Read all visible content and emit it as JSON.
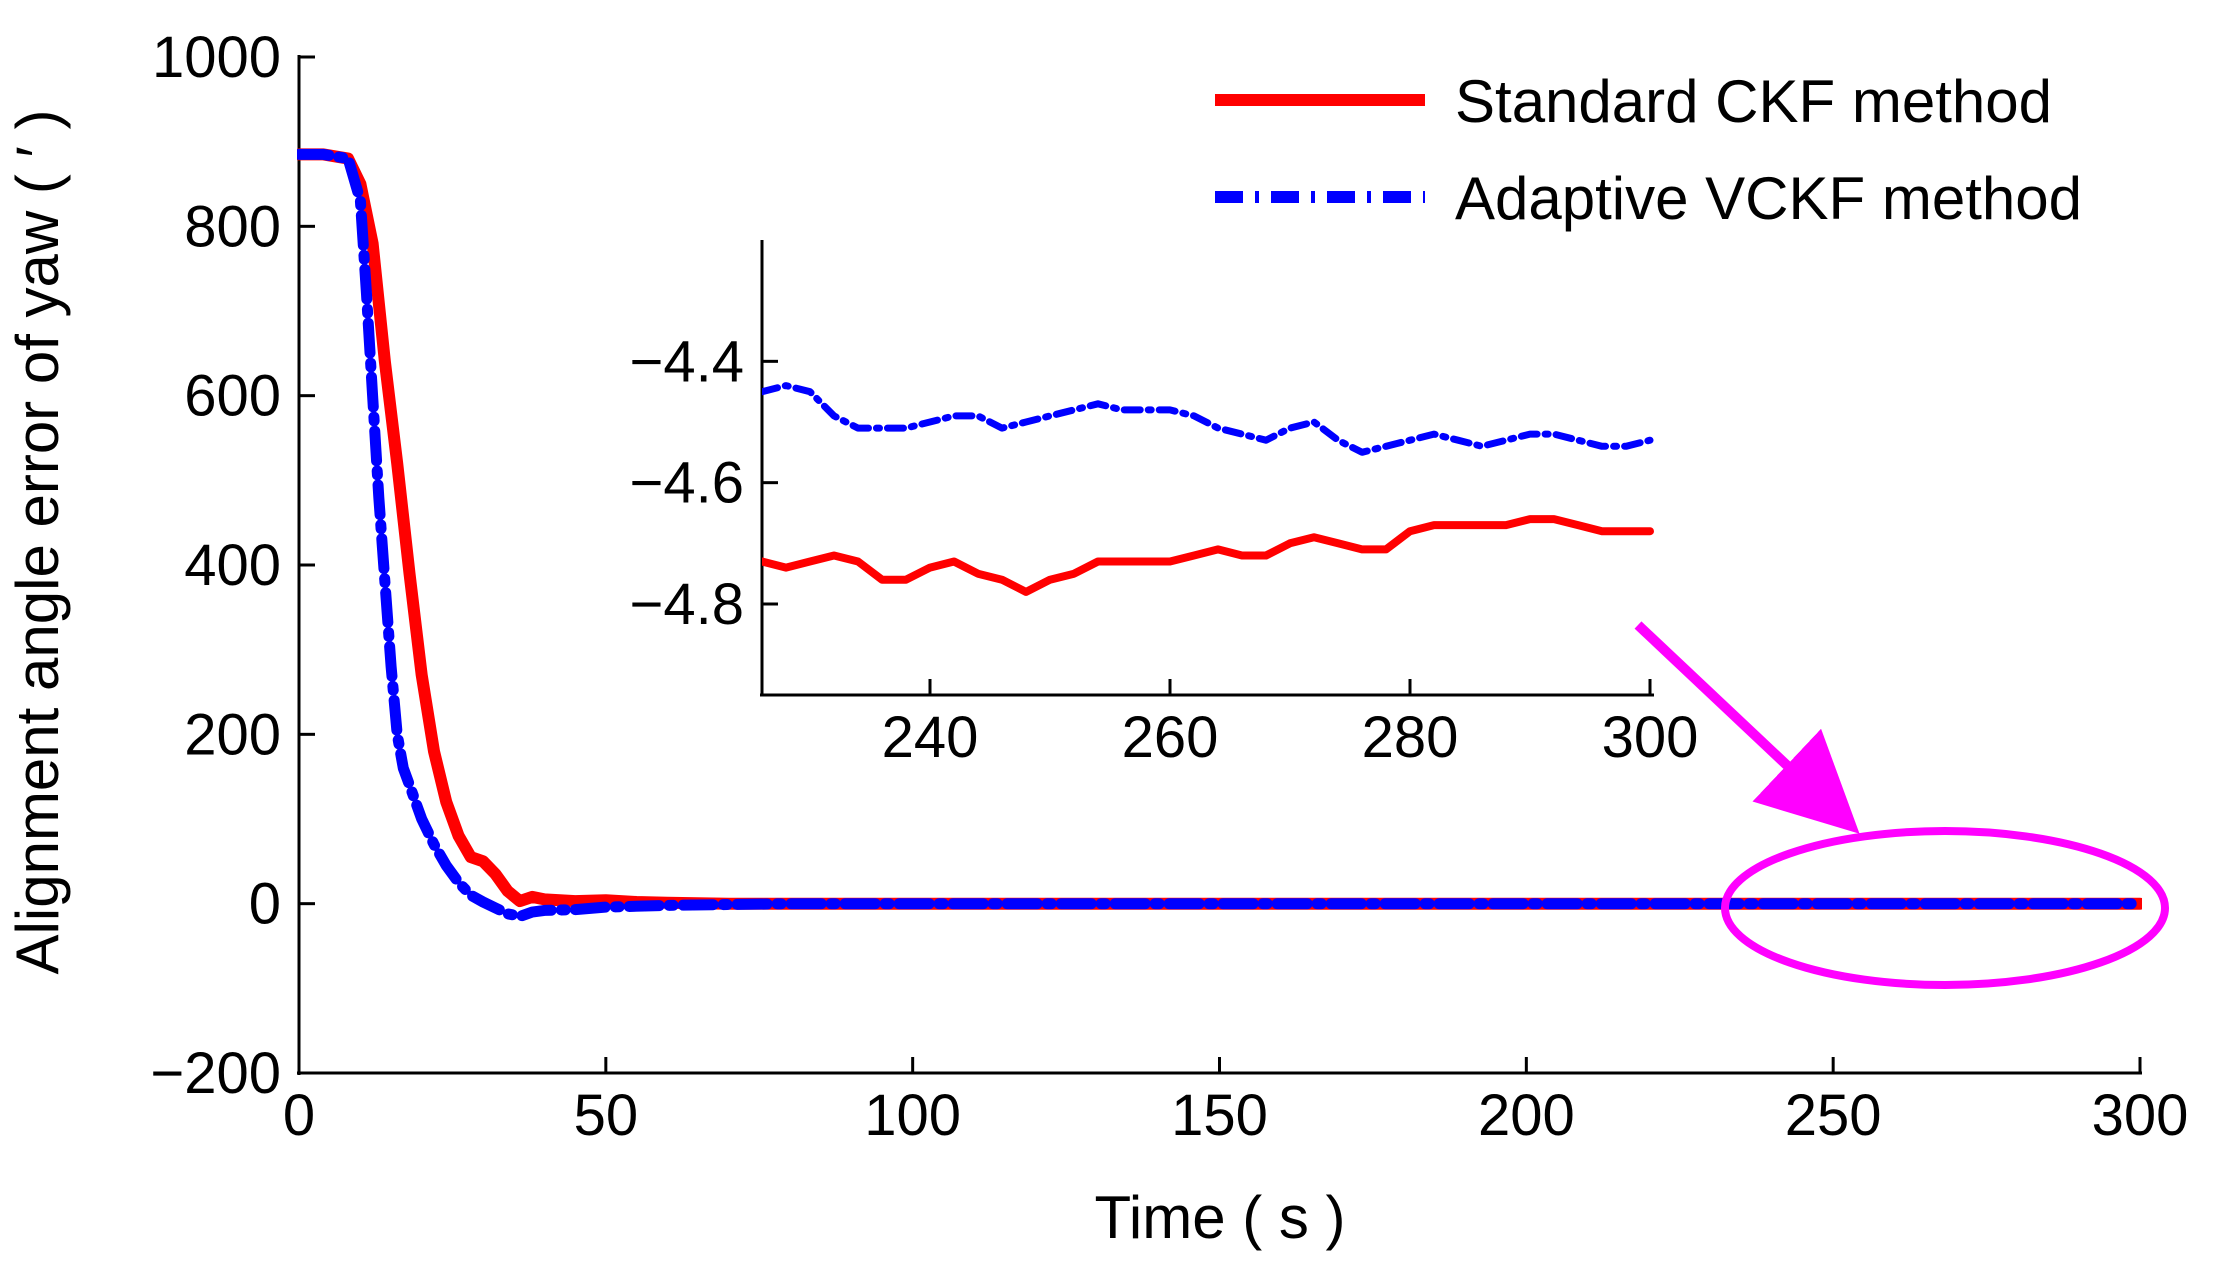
{
  "chart_data": {
    "type": "line",
    "main": {
      "xlabel": "Time ( s )",
      "ylabel": "Alignment angle error of yaw ( ′ )",
      "xlim": [
        0,
        300
      ],
      "ylim": [
        -200,
        1000
      ],
      "xticks": [
        0,
        50,
        100,
        150,
        200,
        250,
        300
      ],
      "yticks": [
        -200,
        0,
        200,
        400,
        600,
        800,
        1000
      ],
      "xtick_labels": [
        "0",
        "50",
        "100",
        "150",
        "200",
        "250",
        "300"
      ],
      "ytick_labels": [
        "−200",
        "0",
        "200",
        "400",
        "600",
        "800",
        "1000"
      ],
      "legend": {
        "position": "top-right",
        "entries": [
          "Standard CKF method",
          "Adaptive VCKF method"
        ]
      },
      "series": [
        {
          "name": "Standard CKF method",
          "color": "#ff0000",
          "style": "solid",
          "x": [
            0,
            4,
            8,
            10,
            12,
            14,
            16,
            18,
            20,
            22,
            24,
            26,
            28,
            30,
            32,
            34,
            36,
            38,
            40,
            45,
            50,
            55,
            60,
            70,
            80,
            100,
            150,
            200,
            250,
            300
          ],
          "y": [
            885,
            885,
            880,
            850,
            780,
            640,
            520,
            390,
            270,
            180,
            120,
            80,
            55,
            50,
            35,
            15,
            3,
            8,
            5,
            3,
            4,
            2,
            1,
            0,
            0,
            0,
            0,
            0,
            0,
            0
          ]
        },
        {
          "name": "Adaptive VCKF method",
          "color": "#0000ff",
          "style": "dashdot",
          "x": [
            0,
            4,
            8,
            10,
            11,
            12,
            13,
            14,
            15,
            16,
            17,
            18,
            20,
            22,
            24,
            26,
            28,
            30,
            32,
            34,
            36,
            38,
            40,
            45,
            50,
            60,
            70,
            80,
            100,
            150,
            200,
            250,
            300
          ],
          "y": [
            885,
            885,
            880,
            830,
            720,
            600,
            480,
            380,
            280,
            200,
            160,
            140,
            100,
            70,
            45,
            25,
            10,
            2,
            -5,
            -12,
            -15,
            -10,
            -8,
            -7,
            -4,
            -2,
            -1,
            0,
            0,
            0,
            0,
            0,
            0
          ]
        }
      ]
    },
    "inset": {
      "xlim": [
        226,
        300
      ],
      "ylim": [
        -4.95,
        -4.2
      ],
      "xticks": [
        240,
        260,
        280,
        300
      ],
      "yticks": [
        -4.4,
        -4.6,
        -4.8
      ],
      "xtick_labels": [
        "240",
        "260",
        "280",
        "300"
      ],
      "ytick_labels": [
        "−4.4",
        "−4.6",
        "−4.8"
      ],
      "series": [
        {
          "name": "Standard CKF method",
          "color": "#ff0000",
          "style": "solid",
          "x": [
            226,
            228,
            230,
            232,
            234,
            236,
            238,
            240,
            242,
            244,
            246,
            248,
            250,
            252,
            254,
            256,
            258,
            260,
            262,
            264,
            266,
            268,
            270,
            272,
            274,
            276,
            278,
            280,
            282,
            284,
            286,
            288,
            290,
            292,
            294,
            296,
            298,
            300
          ],
          "y": [
            -4.73,
            -4.74,
            -4.73,
            -4.72,
            -4.73,
            -4.76,
            -4.76,
            -4.74,
            -4.73,
            -4.75,
            -4.76,
            -4.78,
            -4.76,
            -4.75,
            -4.73,
            -4.73,
            -4.73,
            -4.73,
            -4.72,
            -4.71,
            -4.72,
            -4.72,
            -4.7,
            -4.69,
            -4.7,
            -4.71,
            -4.71,
            -4.68,
            -4.67,
            -4.67,
            -4.67,
            -4.67,
            -4.66,
            -4.66,
            -4.67,
            -4.68,
            -4.68,
            -4.68
          ]
        },
        {
          "name": "Adaptive VCKF method",
          "color": "#0000ff",
          "style": "dashdot",
          "x": [
            226,
            228,
            230,
            232,
            234,
            236,
            238,
            240,
            242,
            244,
            246,
            248,
            250,
            252,
            254,
            256,
            258,
            260,
            262,
            264,
            266,
            268,
            270,
            272,
            274,
            276,
            278,
            280,
            282,
            284,
            286,
            288,
            290,
            292,
            294,
            296,
            298,
            300
          ],
          "y": [
            -4.45,
            -4.44,
            -4.45,
            -4.49,
            -4.51,
            -4.51,
            -4.51,
            -4.5,
            -4.49,
            -4.49,
            -4.51,
            -4.5,
            -4.49,
            -4.48,
            -4.47,
            -4.48,
            -4.48,
            -4.48,
            -4.49,
            -4.51,
            -4.52,
            -4.53,
            -4.51,
            -4.5,
            -4.53,
            -4.55,
            -4.54,
            -4.53,
            -4.52,
            -4.53,
            -4.54,
            -4.53,
            -4.52,
            -4.52,
            -4.53,
            -4.54,
            -4.54,
            -4.53
          ]
        }
      ]
    },
    "annotation": {
      "type": "zoom-callout",
      "color": "#ff00ff",
      "highlight_x_range": [
        233,
        300
      ]
    }
  }
}
